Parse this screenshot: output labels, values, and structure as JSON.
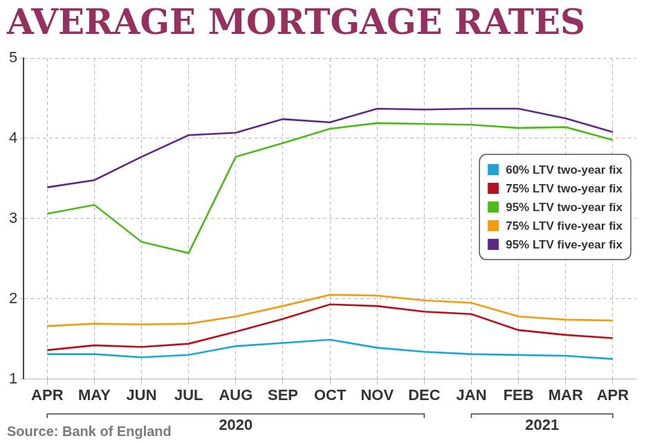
{
  "chart_data": {
    "type": "line",
    "title": "AVERAGE MORTGAGE RATES",
    "source": "Source: Bank of England",
    "categories": [
      "APR",
      "MAY",
      "JUN",
      "JUL",
      "AUG",
      "SEP",
      "OCT",
      "NOV",
      "DEC",
      "JAN",
      "FEB",
      "MAR",
      "APR"
    ],
    "x_groups": [
      {
        "label": "2020",
        "count": 9
      },
      {
        "label": "2021",
        "count": 4
      }
    ],
    "series": [
      {
        "name": "60% LTV two-year fix",
        "color": "#1ba6d9",
        "values": [
          1.31,
          1.31,
          1.27,
          1.3,
          1.41,
          1.45,
          1.49,
          1.39,
          1.34,
          1.31,
          1.3,
          1.29,
          1.25
        ]
      },
      {
        "name": "75% LTV two-year fix",
        "color": "#b5121b",
        "values": [
          1.36,
          1.42,
          1.4,
          1.44,
          1.59,
          1.75,
          1.93,
          1.91,
          1.84,
          1.81,
          1.61,
          1.55,
          1.51
        ]
      },
      {
        "name": "95% LTV two-year fix",
        "color": "#4cbb17",
        "values": [
          3.06,
          3.17,
          2.71,
          2.57,
          3.77,
          3.94,
          4.12,
          4.19,
          4.18,
          4.17,
          4.13,
          4.14,
          3.98
        ]
      },
      {
        "name": "75% LTV five-year fix",
        "color": "#f39c12",
        "values": [
          1.66,
          1.69,
          1.68,
          1.69,
          1.78,
          1.91,
          2.05,
          2.04,
          1.98,
          1.95,
          1.78,
          1.74,
          1.73
        ]
      },
      {
        "name": "95% LTV five-year fix",
        "color": "#5b2a86",
        "values": [
          3.39,
          3.48,
          3.77,
          4.04,
          4.07,
          4.24,
          4.2,
          4.37,
          4.36,
          4.37,
          4.37,
          4.25,
          4.08
        ]
      }
    ],
    "ylim": [
      1,
      5
    ],
    "yticks": [
      1,
      2,
      3,
      4,
      5
    ],
    "grid": true,
    "legend": "right"
  }
}
